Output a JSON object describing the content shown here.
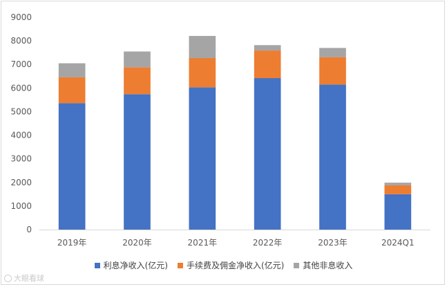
{
  "chart_data": {
    "type": "bar",
    "stacked": true,
    "categories": [
      "2019年",
      "2020年",
      "2021年",
      "2022年",
      "2023年",
      "2024Q1"
    ],
    "series": [
      {
        "name": "利息净收入(亿元)",
        "color": "#4472c4",
        "values": [
          5360,
          5740,
          6030,
          6420,
          6150,
          1500
        ]
      },
      {
        "name": "手续费及佣金净收入(亿元)",
        "color": "#ed7d31",
        "values": [
          1100,
          1140,
          1240,
          1170,
          1160,
          380
        ]
      },
      {
        "name": "其他非息收入",
        "color": "#a5a5a5",
        "values": [
          590,
          670,
          940,
          230,
          390,
          110
        ]
      }
    ],
    "y_ticks": [
      "0",
      "1000",
      "2000",
      "3000",
      "4000",
      "5000",
      "6000",
      "7000",
      "8000",
      "9000"
    ],
    "ylim": [
      0,
      9000
    ],
    "grid": false,
    "legend_position": "bottom"
  },
  "watermark": {
    "text": "大眼看球"
  }
}
